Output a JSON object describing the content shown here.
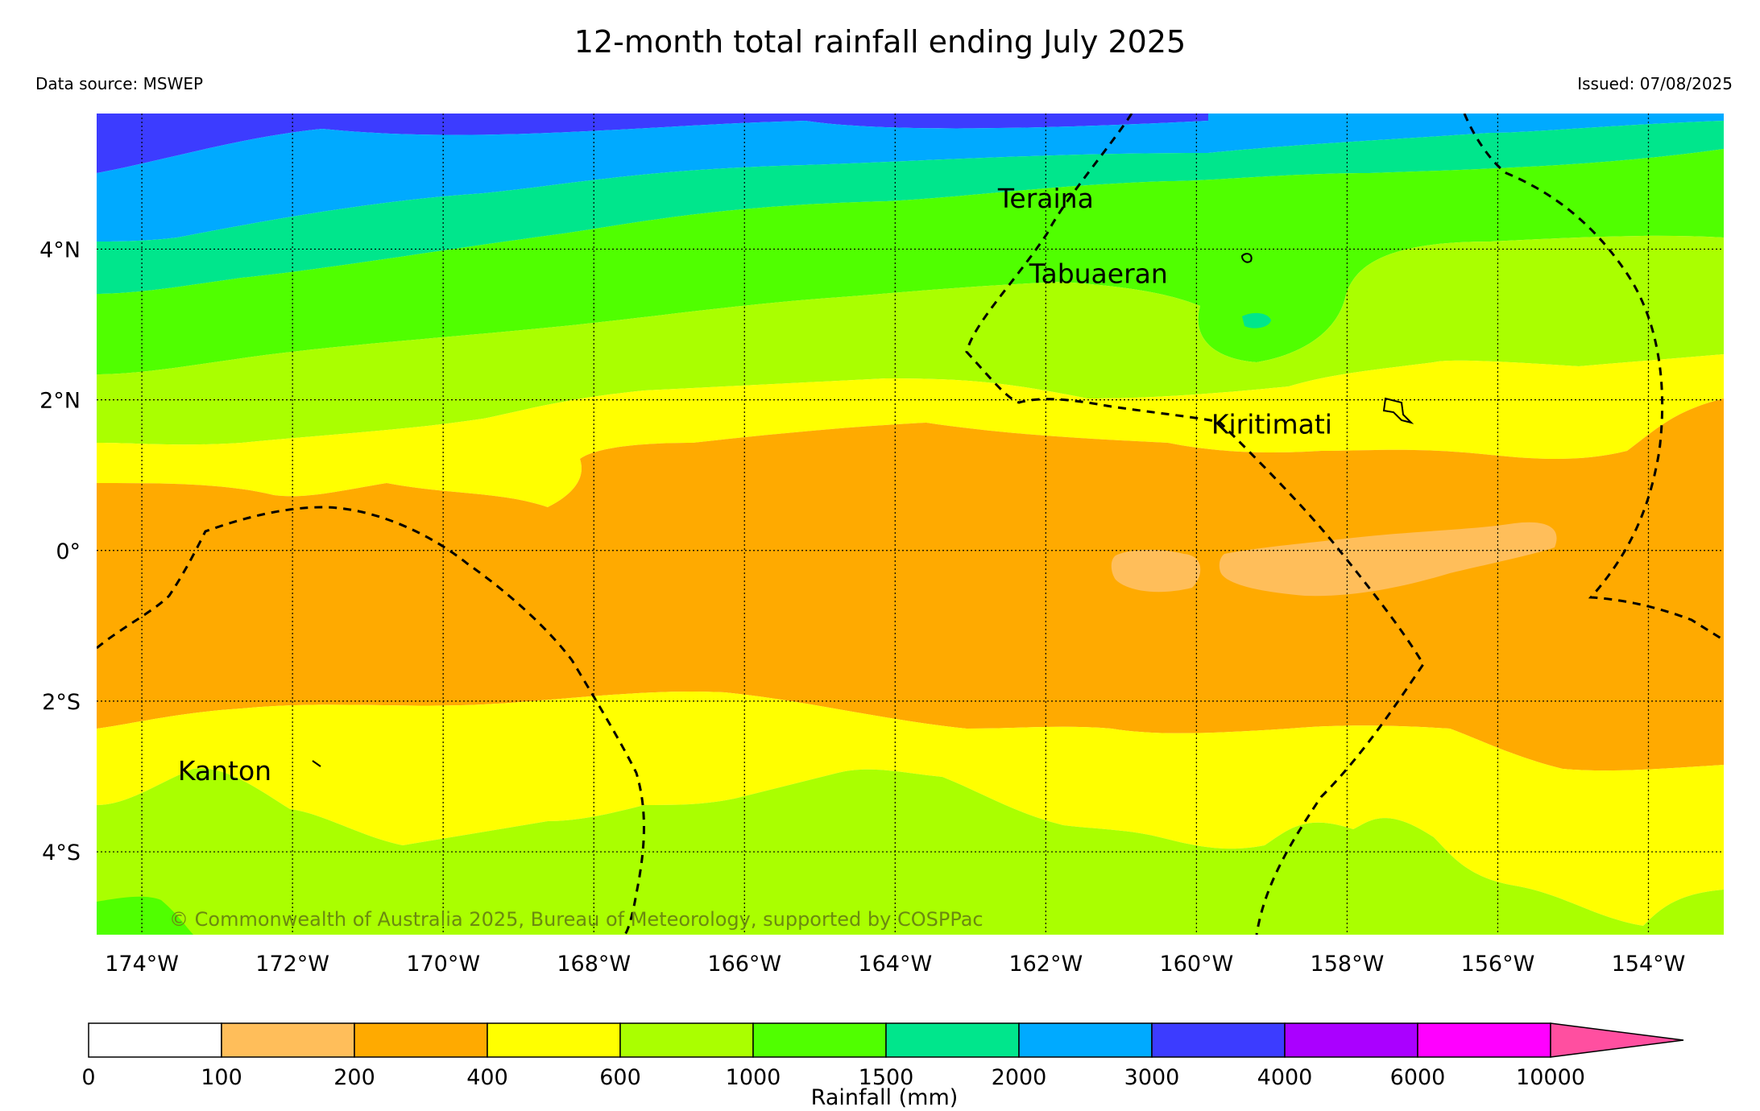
{
  "title": "12-month total rainfall ending July 2025",
  "data_source": "Data source: MSWEP",
  "issued": "Issued: 07/08/2025",
  "copyright": "© Commonwealth of Australia 2025, Bureau of Meteorology, supported by COSPPac",
  "map": {
    "lon_range": [
      -174.6,
      -153.0
    ],
    "lat_range": [
      -5.1,
      5.8
    ],
    "lon_ticks": [
      {
        "value": -174,
        "label": "174°W"
      },
      {
        "value": -172,
        "label": "172°W"
      },
      {
        "value": -170,
        "label": "170°W"
      },
      {
        "value": -168,
        "label": "168°W"
      },
      {
        "value": -166,
        "label": "166°W"
      },
      {
        "value": -164,
        "label": "164°W"
      },
      {
        "value": -162,
        "label": "162°W"
      },
      {
        "value": -160,
        "label": "160°W"
      },
      {
        "value": -158,
        "label": "158°W"
      },
      {
        "value": -156,
        "label": "156°W"
      },
      {
        "value": -154,
        "label": "154°W"
      }
    ],
    "lat_ticks": [
      {
        "value": 4,
        "label": "4°N"
      },
      {
        "value": 2,
        "label": "2°N"
      },
      {
        "value": 0,
        "label": "0°"
      },
      {
        "value": -2,
        "label": "2°S"
      },
      {
        "value": -4,
        "label": "4°S"
      }
    ],
    "places": [
      {
        "name": "Teraina",
        "lon": -162.0,
        "lat": 4.55
      },
      {
        "name": "Tabuaeran",
        "lon": -161.3,
        "lat": 3.55
      },
      {
        "name": "Kiritimati",
        "lon": -159.0,
        "lat": 1.55
      },
      {
        "name": "Kanton",
        "lon": -172.9,
        "lat": -3.05
      }
    ],
    "grid": true
  },
  "colorbar": {
    "title": "Rainfall (mm)",
    "boundaries": [
      "0",
      "100",
      "200",
      "400",
      "600",
      "1000",
      "1500",
      "2000",
      "3000",
      "4000",
      "6000",
      "10000"
    ],
    "colors": [
      "#ffffff",
      "#ffbe5a",
      "#ffaa00",
      "#ffff00",
      "#aaff00",
      "#50ff00",
      "#00e68c",
      "#00aaff",
      "#3c3cff",
      "#aa00ff",
      "#ff00ff"
    ],
    "extend_color": "#ff4fa0"
  }
}
